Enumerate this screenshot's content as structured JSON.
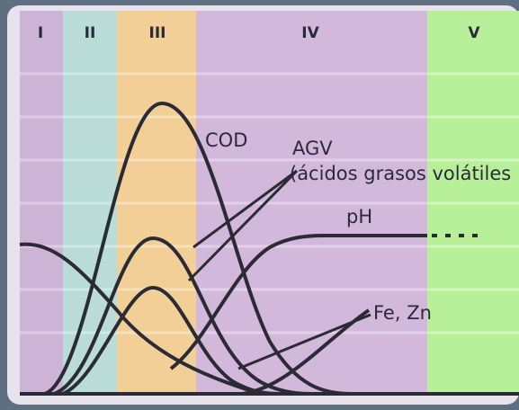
{
  "phases": [
    "I",
    "II",
    "III",
    "IV",
    "V"
  ],
  "labels": {
    "cod": "COD",
    "agv": "AGV",
    "agv_note": "(ácidos grasos volátiles",
    "ph": "pH",
    "fe_zn": "Fe, Zn"
  }
}
